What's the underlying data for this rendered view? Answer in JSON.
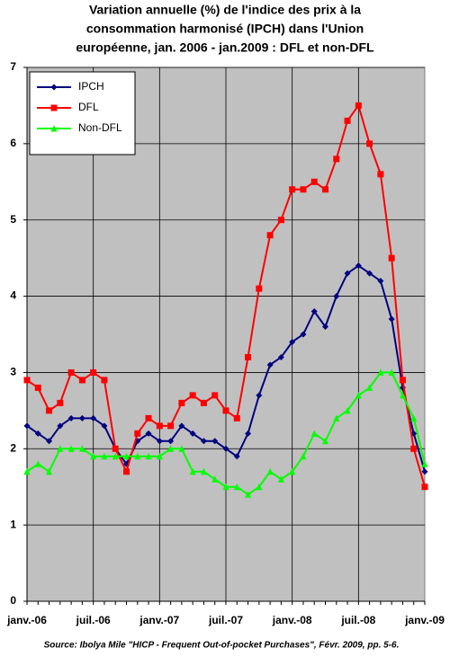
{
  "chart_data": {
    "type": "line",
    "title": [
      "Variation annuelle (%) de l'indice des prix à la",
      "consommation harmonisé (IPCH) dans l'Union",
      "européenne, jan. 2006 - jan.2009 : DFL et non-DFL"
    ],
    "source": "Source: Ibolya Mile \"HICP - Frequent Out-of-pocket Purchases\", Févr. 2009, pp. 5-6.",
    "categories": [
      "janv.-06",
      null,
      null,
      null,
      null,
      null,
      "juil.-06",
      null,
      null,
      null,
      null,
      null,
      "janv.-07",
      null,
      null,
      null,
      null,
      null,
      "juil.-07",
      null,
      null,
      null,
      null,
      null,
      "janv.-08",
      null,
      null,
      null,
      null,
      null,
      "juil.-08",
      null,
      null,
      null,
      null,
      null,
      "janv.-09"
    ],
    "series": [
      {
        "name": "IPCH",
        "color": "#000080",
        "marker": "diamond",
        "values": [
          2.3,
          2.2,
          2.1,
          2.3,
          2.4,
          2.4,
          2.4,
          2.3,
          2.0,
          1.8,
          2.1,
          2.2,
          2.1,
          2.1,
          2.3,
          2.2,
          2.1,
          2.1,
          2.0,
          1.9,
          2.2,
          2.7,
          3.1,
          3.2,
          3.4,
          3.5,
          3.8,
          3.6,
          4.0,
          4.3,
          4.4,
          4.3,
          4.2,
          3.7,
          2.8,
          2.2,
          1.7
        ]
      },
      {
        "name": "DFL",
        "color": "#ff0000",
        "marker": "square",
        "values": [
          2.9,
          2.8,
          2.5,
          2.6,
          3.0,
          2.9,
          3.0,
          2.9,
          2.0,
          1.7,
          2.2,
          2.4,
          2.3,
          2.3,
          2.6,
          2.7,
          2.6,
          2.7,
          2.5,
          2.4,
          3.2,
          4.1,
          4.8,
          5.0,
          5.4,
          5.4,
          5.5,
          5.4,
          5.8,
          6.3,
          6.5,
          6.0,
          5.6,
          4.5,
          2.9,
          2.0,
          1.5
        ]
      },
      {
        "name": "Non-DFL",
        "color": "#00ff00",
        "marker": "triangle",
        "values": [
          1.7,
          1.8,
          1.7,
          2.0,
          2.0,
          2.0,
          1.9,
          1.9,
          1.9,
          1.9,
          1.9,
          1.9,
          1.9,
          2.0,
          2.0,
          1.7,
          1.7,
          1.6,
          1.5,
          1.5,
          1.4,
          1.5,
          1.7,
          1.6,
          1.7,
          1.9,
          2.2,
          2.1,
          2.4,
          2.5,
          2.7,
          2.8,
          3.0,
          3.0,
          2.7,
          2.4,
          1.8
        ]
      }
    ],
    "ylim": [
      0,
      7
    ],
    "yticks": [
      0,
      1,
      2,
      3,
      4,
      5,
      6,
      7
    ],
    "grid": true,
    "legend": "upper left",
    "background": "#c0c0c0"
  }
}
